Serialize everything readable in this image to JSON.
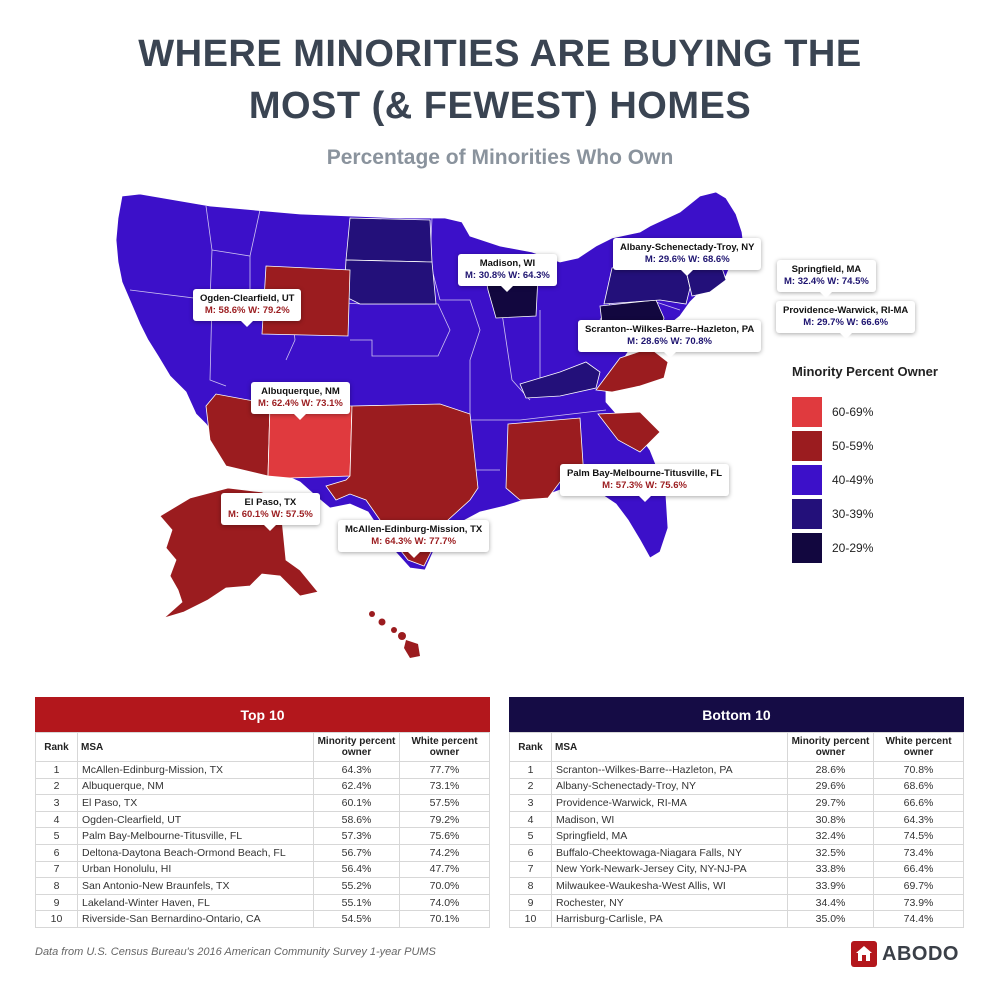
{
  "title_line1": "WHERE MINORITIES ARE BUYING THE",
  "title_line2": "MOST (& FEWEST) HOMES",
  "subtitle": "Percentage of Minorities Who Own",
  "colors": {
    "c60_69": "#e03a3e",
    "c50_59": "#9b1c1f",
    "c40_49": "#3c10c9",
    "c30_39": "#23107a",
    "c20_29": "#12073f"
  },
  "callouts": {
    "ogden": {
      "name": "Ogden-Clearfield, UT",
      "vals": "M: 58.6% W: 79.2%"
    },
    "albuquerque": {
      "name": "Albuquerque, NM",
      "vals": "M: 62.4% W: 73.1%"
    },
    "elpaso": {
      "name": "El Paso, TX",
      "vals": "M: 60.1% W: 57.5%"
    },
    "mcallen": {
      "name": "McAllen-Edinburg-Mission, TX",
      "vals": "M: 64.3% W: 77.7%"
    },
    "madison": {
      "name": "Madison, WI",
      "vals": "M: 30.8% W: 64.3%"
    },
    "albany": {
      "name": "Albany-Schenectady-Troy, NY",
      "vals": "M: 29.6% W: 68.6%"
    },
    "springfield": {
      "name": "Springfield, MA",
      "vals": "M: 32.4% W: 74.5%"
    },
    "providence": {
      "name": "Providence-Warwick, RI-MA",
      "vals": "M: 29.7% W: 66.6%"
    },
    "scranton": {
      "name": "Scranton--Wilkes-Barre--Hazleton, PA",
      "vals": "M: 28.6% W: 70.8%"
    },
    "palmbay": {
      "name": "Palm Bay-Melbourne-Titusville, FL",
      "vals": "M: 57.3% W: 75.6%"
    }
  },
  "legend": {
    "title": "Minority Percent Owner",
    "items": [
      "60-69%",
      "50-59%",
      "40-49%",
      "30-39%",
      "20-29%"
    ]
  },
  "columns": {
    "rank": "Rank",
    "msa": "MSA",
    "minority": "Minority percent owner",
    "white": "White percent owner"
  },
  "top10": {
    "title": "Top 10",
    "rows": [
      [
        "1",
        "McAllen-Edinburg-Mission, TX",
        "64.3%",
        "77.7%"
      ],
      [
        "2",
        "Albuquerque, NM",
        "62.4%",
        "73.1%"
      ],
      [
        "3",
        "El Paso, TX",
        "60.1%",
        "57.5%"
      ],
      [
        "4",
        "Ogden-Clearfield, UT",
        "58.6%",
        "79.2%"
      ],
      [
        "5",
        "Palm Bay-Melbourne-Titusville, FL",
        "57.3%",
        "75.6%"
      ],
      [
        "6",
        "Deltona-Daytona Beach-Ormond Beach, FL",
        "56.7%",
        "74.2%"
      ],
      [
        "7",
        "Urban Honolulu, HI",
        "56.4%",
        "47.7%"
      ],
      [
        "8",
        "San Antonio-New Braunfels, TX",
        "55.2%",
        "70.0%"
      ],
      [
        "9",
        "Lakeland-Winter Haven, FL",
        "55.1%",
        "74.0%"
      ],
      [
        "10",
        "Riverside-San Bernardino-Ontario, CA",
        "54.5%",
        "70.1%"
      ]
    ]
  },
  "bottom10": {
    "title": "Bottom 10",
    "rows": [
      [
        "1",
        "Scranton--Wilkes-Barre--Hazleton, PA",
        "28.6%",
        "70.8%"
      ],
      [
        "2",
        "Albany-Schenectady-Troy, NY",
        "29.6%",
        "68.6%"
      ],
      [
        "3",
        "Providence-Warwick, RI-MA",
        "29.7%",
        "66.6%"
      ],
      [
        "4",
        "Madison, WI",
        "30.8%",
        "64.3%"
      ],
      [
        "5",
        "Springfield, MA",
        "32.4%",
        "74.5%"
      ],
      [
        "6",
        "Buffalo-Cheektowaga-Niagara Falls, NY",
        "32.5%",
        "73.4%"
      ],
      [
        "7",
        "New York-Newark-Jersey City, NY-NJ-PA",
        "33.8%",
        "66.4%"
      ],
      [
        "8",
        "Milwaukee-Waukesha-West Allis, WI",
        "33.9%",
        "69.7%"
      ],
      [
        "9",
        "Rochester, NY",
        "34.4%",
        "73.9%"
      ],
      [
        "10",
        "Harrisburg-Carlisle, PA",
        "35.0%",
        "74.4%"
      ]
    ]
  },
  "source": "Data from U.S. Census Bureau's 2016 American Community Survey 1-year PUMS",
  "logo_text": "ABODO"
}
